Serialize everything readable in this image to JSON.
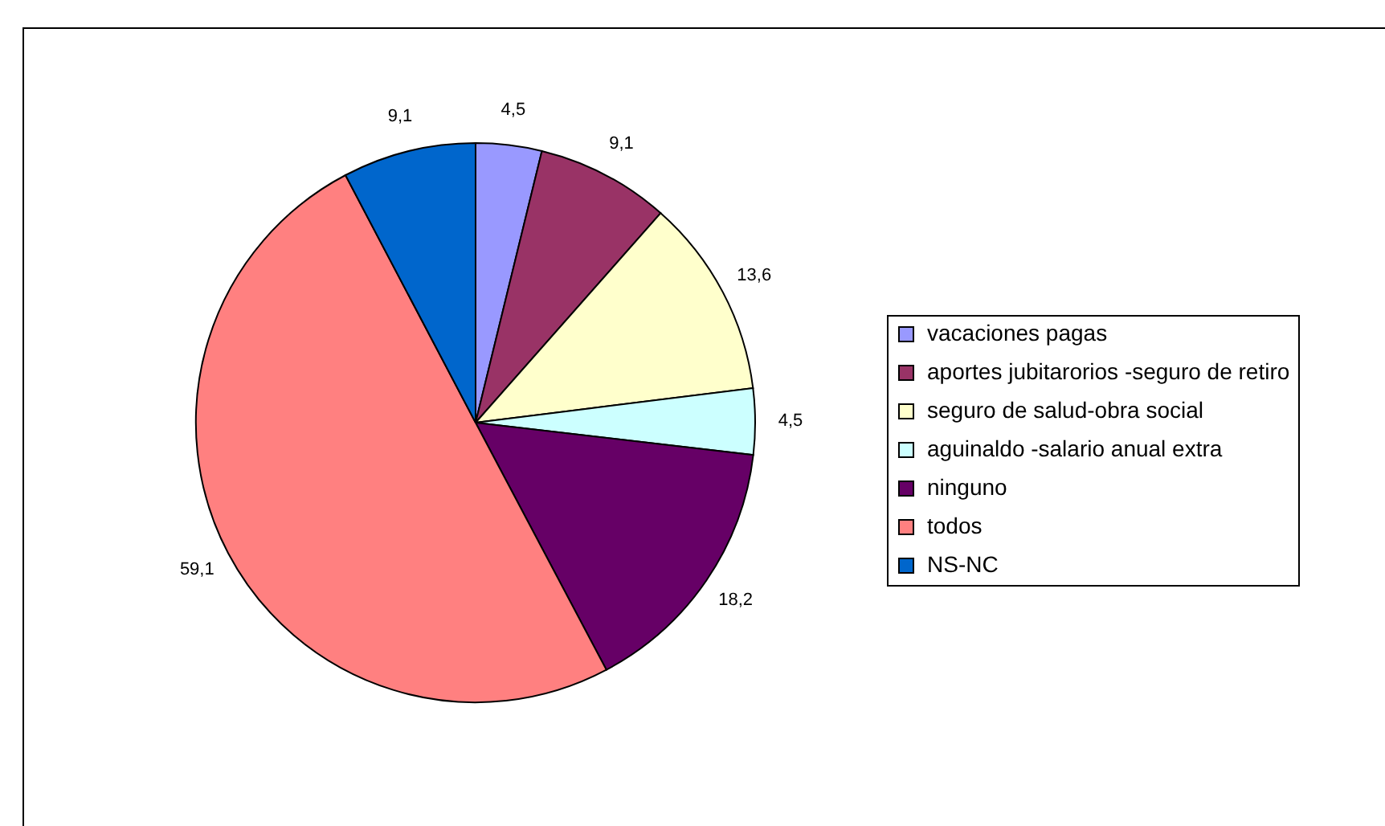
{
  "chart_data": {
    "type": "pie",
    "categories": [
      "vacaciones pagas",
      "aportes jubitarorios -seguro de retiro",
      "seguro de salud-obra social",
      "aguinaldo -salario anual extra",
      "ninguno",
      "todos",
      "NS-NC"
    ],
    "values": [
      4.5,
      9.1,
      13.6,
      4.5,
      18.2,
      59.1,
      9.1
    ],
    "value_labels": [
      "4,5",
      "9,1",
      "13,6",
      "4,5",
      "18,2",
      "59,1",
      "9,1"
    ],
    "colors": [
      "#9999ff",
      "#993366",
      "#ffffcc",
      "#ccffff",
      "#660066",
      "#ff8080",
      "#0066cc"
    ],
    "legend": "right"
  }
}
